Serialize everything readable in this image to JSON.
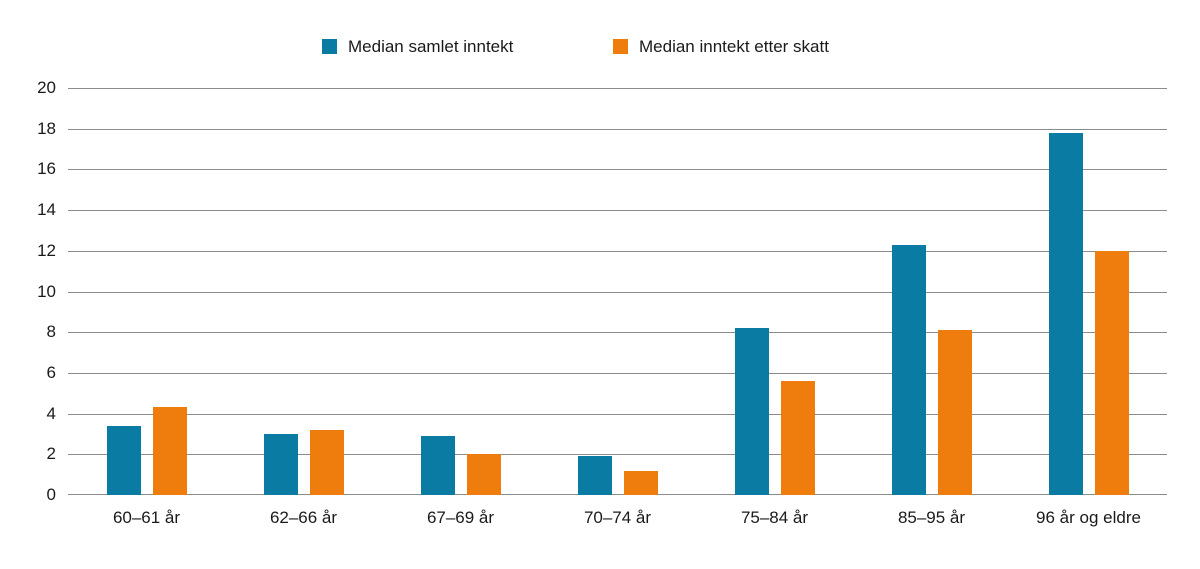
{
  "chart_data": {
    "type": "bar",
    "title": "",
    "categories": [
      "60–61 år",
      "62–66 år",
      "67–69 år",
      "70–74 år",
      "75–84 år",
      "85–95 år",
      "96 år og eldre"
    ],
    "series": [
      {
        "name": "Median samlet inntekt",
        "color": "#0a7ca4",
        "values": [
          3.4,
          3.0,
          2.9,
          1.9,
          8.2,
          12.3,
          17.8
        ]
      },
      {
        "name": "Median inntekt etter skatt",
        "color": "#ee7d0d",
        "values": [
          4.3,
          3.2,
          2.0,
          1.2,
          5.6,
          8.1,
          12.0
        ]
      }
    ],
    "xlabel": "",
    "ylabel": "",
    "ylim": [
      0,
      20
    ],
    "yticks": [
      0,
      2,
      4,
      6,
      8,
      10,
      12,
      14,
      16,
      18,
      20
    ],
    "grid": "horizontal",
    "legend_position": "top"
  },
  "colors": {
    "gridline": "#8c8c8c",
    "text": "#1a1a1a",
    "background": "#ffffff"
  }
}
